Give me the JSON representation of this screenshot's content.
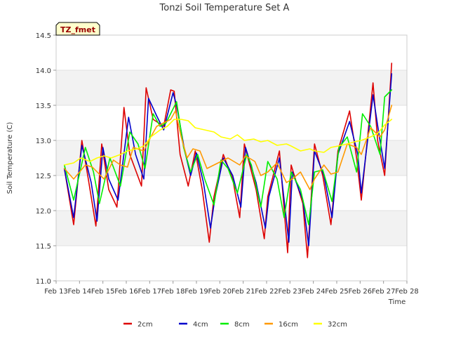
{
  "chart_data": {
    "type": "line",
    "title": "Tonzi Soil Temperature Set A",
    "xlabel": "Time",
    "ylabel": "Soil Temperature (C)",
    "ylim": [
      11.0,
      14.5
    ],
    "xlim": [
      13,
      28
    ],
    "yticks": [
      "11.0",
      "11.5",
      "12.0",
      "12.5",
      "13.0",
      "13.5",
      "14.0",
      "14.5"
    ],
    "xticks": [
      "Feb 13",
      "Feb 14",
      "Feb 15",
      "Feb 16",
      "Feb 17",
      "Feb 18",
      "Feb 19",
      "Feb 20",
      "Feb 21",
      "Feb 22",
      "Feb 23",
      "Feb 24",
      "Feb 25",
      "Feb 26",
      "Feb 27",
      "Feb 28"
    ],
    "grid": true,
    "legend_position": "bottom",
    "annotation": "TZ_fmet",
    "series": [
      {
        "name": "2cm",
        "color": "#dd0000",
        "x": [
          13.35,
          13.75,
          14.1,
          14.4,
          14.7,
          14.95,
          15.25,
          15.6,
          15.9,
          16.15,
          16.65,
          16.85,
          17.15,
          17.6,
          17.9,
          18.05,
          18.3,
          18.65,
          18.95,
          19.25,
          19.55,
          19.75,
          20.15,
          20.55,
          20.85,
          21.05,
          21.55,
          21.9,
          22.05,
          22.55,
          22.9,
          23.05,
          23.55,
          23.75,
          24.05,
          24.4,
          24.75,
          25.05,
          25.55,
          25.85,
          26.05,
          26.55,
          26.75,
          27.05,
          27.35
        ],
        "y": [
          12.6,
          11.8,
          13.0,
          12.4,
          11.78,
          12.95,
          12.3,
          12.05,
          13.47,
          12.8,
          12.35,
          13.75,
          13.3,
          13.2,
          13.72,
          13.7,
          12.8,
          12.35,
          12.85,
          12.3,
          11.55,
          12.2,
          12.8,
          12.45,
          11.9,
          12.95,
          12.3,
          11.6,
          12.2,
          12.85,
          11.4,
          12.65,
          12.1,
          11.33,
          12.95,
          12.5,
          11.8,
          12.85,
          13.42,
          12.75,
          12.15,
          13.82,
          13.0,
          12.5,
          14.1
        ]
      },
      {
        "name": "4cm",
        "color": "#0000cc",
        "x": [
          13.35,
          13.75,
          14.1,
          14.5,
          14.75,
          15.0,
          15.25,
          15.65,
          16.1,
          16.4,
          16.75,
          16.95,
          17.3,
          17.6,
          18.0,
          18.15,
          18.5,
          18.75,
          19.0,
          19.3,
          19.6,
          19.8,
          20.15,
          20.55,
          20.9,
          21.1,
          21.55,
          21.95,
          22.1,
          22.55,
          22.95,
          23.1,
          23.55,
          23.8,
          24.05,
          24.45,
          24.8,
          25.05,
          25.55,
          25.9,
          26.05,
          26.55,
          26.8,
          27.05,
          27.35
        ],
        "y": [
          12.6,
          11.9,
          12.93,
          12.4,
          11.85,
          12.9,
          12.45,
          12.15,
          13.33,
          12.8,
          12.45,
          13.6,
          13.35,
          13.15,
          13.68,
          13.5,
          12.85,
          12.5,
          12.82,
          12.4,
          11.75,
          12.2,
          12.75,
          12.5,
          12.05,
          12.9,
          12.4,
          11.75,
          12.2,
          12.75,
          11.55,
          12.55,
          12.15,
          11.5,
          12.85,
          12.5,
          11.9,
          12.8,
          13.27,
          12.8,
          12.25,
          13.65,
          13.1,
          12.6,
          13.95
        ]
      },
      {
        "name": "8cm",
        "color": "#00ee00",
        "x": [
          13.35,
          13.75,
          14.25,
          14.6,
          14.85,
          15.3,
          15.75,
          16.15,
          16.5,
          16.8,
          17.15,
          17.45,
          17.7,
          18.15,
          18.45,
          18.75,
          19.05,
          19.35,
          19.75,
          20.05,
          20.35,
          20.75,
          21.15,
          21.35,
          21.75,
          22.05,
          22.45,
          22.75,
          23.05,
          23.45,
          23.8,
          24.05,
          24.4,
          24.8,
          25.1,
          25.45,
          25.85,
          26.1,
          26.45,
          26.85,
          27.05,
          27.35
        ],
        "y": [
          12.65,
          12.15,
          12.9,
          12.55,
          12.1,
          12.75,
          12.35,
          13.12,
          12.95,
          12.6,
          13.38,
          13.2,
          13.25,
          13.55,
          12.9,
          12.55,
          12.8,
          12.45,
          12.08,
          12.72,
          12.6,
          12.25,
          12.8,
          12.65,
          12.05,
          12.7,
          12.45,
          11.9,
          12.55,
          12.3,
          11.8,
          12.55,
          12.58,
          12.13,
          12.9,
          13.05,
          12.55,
          13.38,
          13.2,
          12.8,
          13.62,
          13.72
        ]
      },
      {
        "name": "16cm",
        "color": "#ff9900",
        "x": [
          13.35,
          13.75,
          14.25,
          14.55,
          15.05,
          15.45,
          15.75,
          16.05,
          16.3,
          16.75,
          17.05,
          17.3,
          17.6,
          17.9,
          18.1,
          18.35,
          18.6,
          18.85,
          19.15,
          19.45,
          19.75,
          20.05,
          20.35,
          20.85,
          21.1,
          21.5,
          21.75,
          22.05,
          22.45,
          22.85,
          23.1,
          23.45,
          23.85,
          24.05,
          24.45,
          24.75,
          25.05,
          25.45,
          25.85,
          26.05,
          26.45,
          26.85,
          27.05,
          27.35
        ],
        "y": [
          12.6,
          12.45,
          12.65,
          12.62,
          12.45,
          12.72,
          12.65,
          12.62,
          12.9,
          12.85,
          13.05,
          13.2,
          13.25,
          13.3,
          13.42,
          13.05,
          12.75,
          12.88,
          12.85,
          12.6,
          12.65,
          12.7,
          12.75,
          12.65,
          12.78,
          12.7,
          12.5,
          12.55,
          12.68,
          12.4,
          12.45,
          12.55,
          12.3,
          12.45,
          12.65,
          12.52,
          12.55,
          12.95,
          12.9,
          12.8,
          13.18,
          13.05,
          13.15,
          13.5
        ]
      },
      {
        "name": "32cm",
        "color": "#ffff00",
        "x": [
          13.35,
          13.75,
          14.05,
          14.45,
          14.75,
          15.05,
          15.35,
          15.75,
          16.05,
          16.45,
          16.75,
          17.05,
          17.45,
          17.75,
          18.05,
          18.35,
          18.65,
          18.95,
          19.35,
          19.75,
          20.05,
          20.45,
          20.75,
          21.05,
          21.45,
          21.75,
          22.05,
          22.45,
          22.85,
          23.05,
          23.45,
          23.85,
          24.05,
          24.45,
          24.75,
          25.05,
          25.45,
          25.75,
          26.05,
          26.45,
          26.75,
          27.05,
          27.35
        ],
        "y": [
          12.65,
          12.68,
          12.75,
          12.7,
          12.75,
          12.78,
          12.75,
          12.8,
          12.85,
          12.88,
          12.92,
          13.05,
          13.15,
          13.2,
          13.3,
          13.3,
          13.28,
          13.18,
          13.15,
          13.12,
          13.05,
          13.02,
          13.08,
          13.0,
          13.02,
          12.98,
          13.0,
          12.93,
          12.95,
          12.92,
          12.85,
          12.88,
          12.85,
          12.83,
          12.9,
          12.92,
          12.95,
          12.98,
          13.0,
          13.05,
          13.1,
          13.22,
          13.3
        ]
      }
    ]
  }
}
